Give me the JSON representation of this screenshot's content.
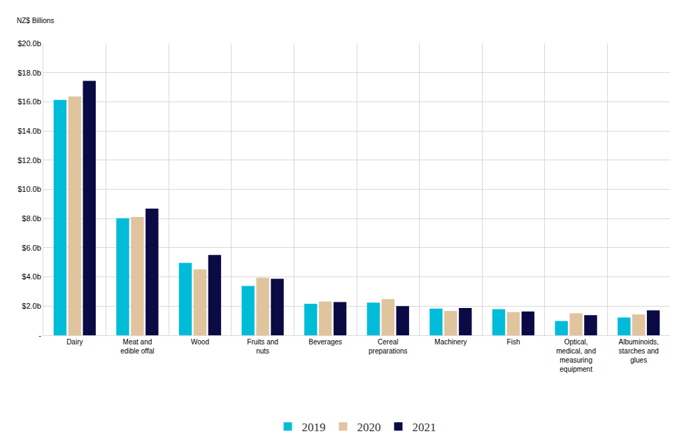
{
  "chart_data": {
    "type": "bar",
    "y_label": "NZ$ Billions",
    "categories": [
      "Dairy",
      "Meat and edible offal",
      "Wood",
      "Fruits and nuts",
      "Beverages",
      "Cereal preparations",
      "Machinery",
      "Fish",
      "Optical, medical, and measuring equipment",
      "Albuminoids, starches and glues"
    ],
    "series": [
      {
        "name": "2019",
        "color": "#00bcd8",
        "values": [
          16.13,
          8.02,
          4.97,
          3.38,
          2.16,
          2.24,
          1.83,
          1.79,
          0.98,
          1.22
        ]
      },
      {
        "name": "2020",
        "color": "#e0c49e",
        "values": [
          16.37,
          8.1,
          4.52,
          3.95,
          2.32,
          2.48,
          1.67,
          1.59,
          1.51,
          1.43
        ]
      },
      {
        "name": "2021",
        "color": "#0a0a45",
        "values": [
          17.43,
          8.68,
          5.5,
          3.87,
          2.28,
          2.0,
          1.87,
          1.63,
          1.38,
          1.71
        ]
      }
    ],
    "ylim": [
      0,
      20
    ],
    "yticks": [
      {
        "value": 0,
        "label": "-"
      },
      {
        "value": 2,
        "label": "$2.0b"
      },
      {
        "value": 4,
        "label": "$4.0b"
      },
      {
        "value": 6,
        "label": "$6.0b"
      },
      {
        "value": 8,
        "label": "$8.0b"
      },
      {
        "value": 10,
        "label": "$10.0b"
      },
      {
        "value": 12,
        "label": "$12.0b"
      },
      {
        "value": 14,
        "label": "$14.0b"
      },
      {
        "value": 16,
        "label": "$16.0b"
      },
      {
        "value": 18,
        "label": "$18.0b"
      },
      {
        "value": 20,
        "label": "$20.0b"
      }
    ],
    "grid": true,
    "legend": "bottom"
  }
}
